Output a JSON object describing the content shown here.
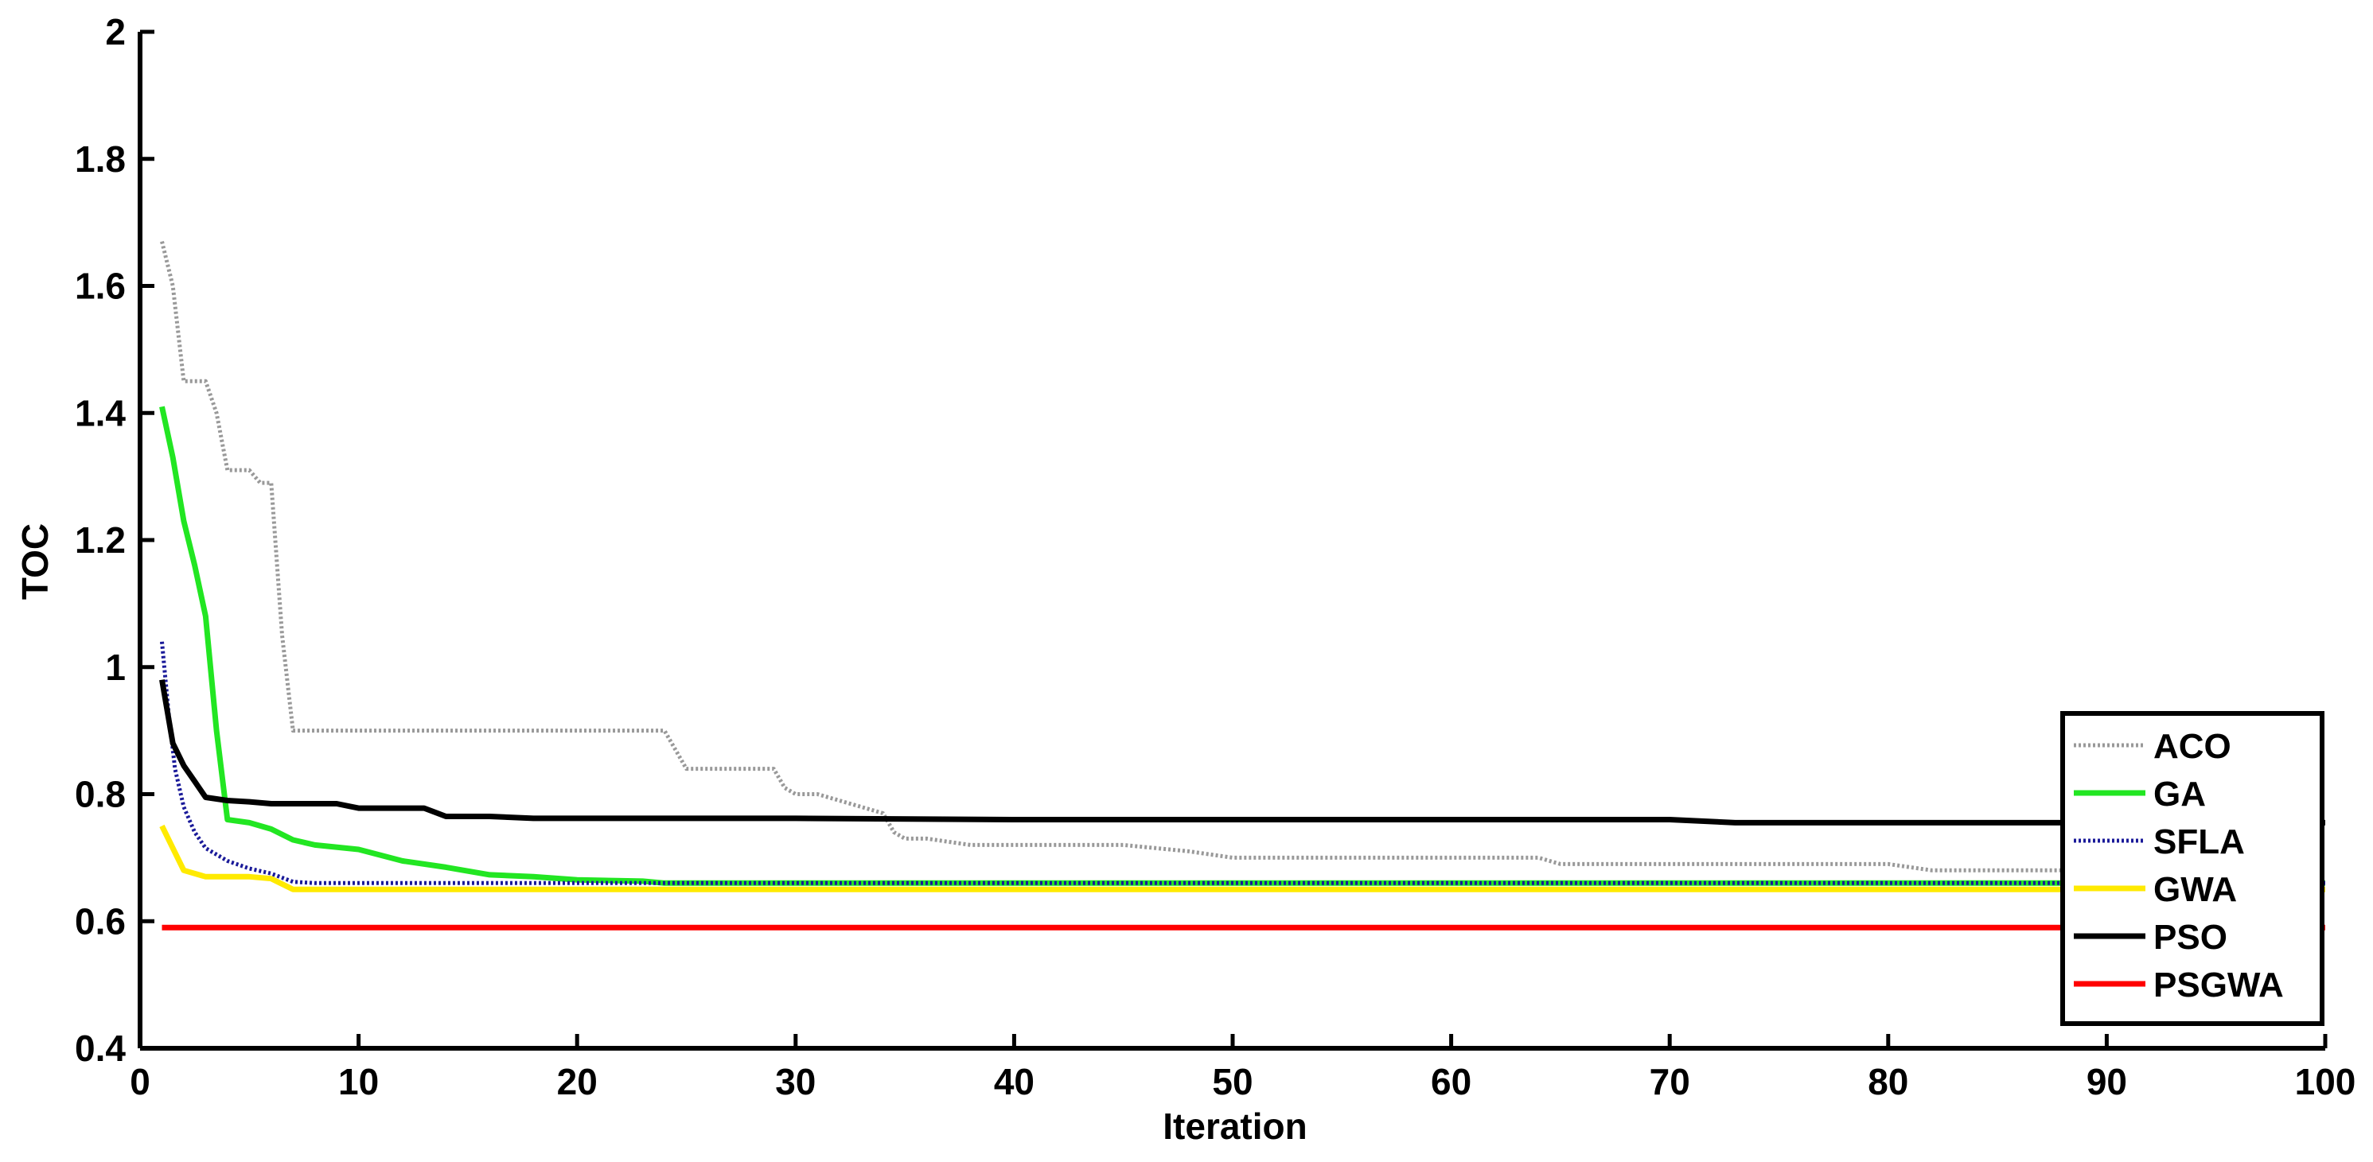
{
  "chart_data": {
    "type": "line",
    "xlabel": "Iteration",
    "ylabel": "TOC",
    "xlim": [
      0,
      100
    ],
    "ylim": [
      0.4,
      2
    ],
    "xticks": [
      "0",
      "10",
      "20",
      "30",
      "40",
      "50",
      "60",
      "70",
      "80",
      "90",
      "100"
    ],
    "yticks": [
      "0.4",
      "0.6",
      "0.8",
      "1",
      "1.2",
      "1.4",
      "1.6",
      "1.8",
      "2"
    ],
    "grid": false,
    "legend_position": "bottom-right",
    "series": [
      {
        "name": "ACO",
        "color": "#999999",
        "style": "dotted",
        "x": [
          1,
          1.5,
          2,
          3,
          3.5,
          4,
          5,
          5.5,
          6,
          6.5,
          7,
          7.3,
          10,
          15,
          20,
          24,
          24.5,
          25,
          28,
          29,
          29.5,
          30,
          31,
          32,
          33,
          34,
          34.5,
          35,
          36,
          38,
          40,
          45,
          48,
          50,
          55,
          60,
          64,
          65,
          70,
          80,
          82,
          85,
          90,
          95,
          100
        ],
        "y": [
          1.67,
          1.6,
          1.45,
          1.45,
          1.4,
          1.31,
          1.31,
          1.29,
          1.29,
          1.05,
          0.9,
          0.9,
          0.9,
          0.9,
          0.9,
          0.9,
          0.87,
          0.84,
          0.84,
          0.84,
          0.81,
          0.8,
          0.8,
          0.79,
          0.78,
          0.77,
          0.74,
          0.73,
          0.73,
          0.72,
          0.72,
          0.72,
          0.71,
          0.7,
          0.7,
          0.7,
          0.7,
          0.69,
          0.69,
          0.69,
          0.68,
          0.68,
          0.68,
          0.68,
          0.67
        ]
      },
      {
        "name": "GA",
        "color": "#22e622",
        "style": "solid",
        "x": [
          1,
          1.5,
          2,
          2.5,
          3,
          3.5,
          4,
          5,
          6,
          7,
          8,
          10,
          12,
          14,
          16,
          18,
          20,
          23,
          24,
          30,
          40,
          50,
          60,
          70,
          80,
          90,
          100
        ],
        "y": [
          1.41,
          1.33,
          1.23,
          1.16,
          1.08,
          0.9,
          0.76,
          0.755,
          0.745,
          0.728,
          0.72,
          0.713,
          0.695,
          0.685,
          0.673,
          0.67,
          0.665,
          0.663,
          0.66,
          0.66,
          0.66,
          0.66,
          0.66,
          0.66,
          0.66,
          0.66,
          0.66
        ]
      },
      {
        "name": "SFLA",
        "color": "#1a1a99",
        "style": "dotted",
        "x": [
          1,
          1.3,
          1.6,
          2,
          2.5,
          3,
          4,
          5,
          6,
          7,
          8,
          10,
          20,
          30,
          40,
          50,
          60,
          70,
          80,
          90,
          100
        ],
        "y": [
          1.04,
          0.93,
          0.84,
          0.78,
          0.74,
          0.715,
          0.695,
          0.683,
          0.675,
          0.662,
          0.66,
          0.66,
          0.66,
          0.66,
          0.66,
          0.66,
          0.66,
          0.66,
          0.66,
          0.66,
          0.66
        ]
      },
      {
        "name": "GWA",
        "color": "#ffea00",
        "style": "solid",
        "x": [
          1,
          2,
          3,
          4,
          5,
          6,
          7,
          10,
          20,
          30,
          40,
          50,
          60,
          70,
          80,
          90,
          100
        ],
        "y": [
          0.75,
          0.68,
          0.67,
          0.67,
          0.67,
          0.667,
          0.65,
          0.65,
          0.65,
          0.65,
          0.65,
          0.65,
          0.65,
          0.65,
          0.65,
          0.65,
          0.65
        ]
      },
      {
        "name": "PSO",
        "color": "#000000",
        "style": "solid",
        "x": [
          1,
          1.5,
          2,
          2.5,
          3,
          4,
          5,
          6,
          8,
          9,
          10,
          12,
          13,
          14,
          16,
          18,
          20,
          30,
          40,
          50,
          60,
          70,
          73,
          80,
          90,
          100
        ],
        "y": [
          0.98,
          0.88,
          0.845,
          0.82,
          0.795,
          0.79,
          0.788,
          0.785,
          0.785,
          0.785,
          0.778,
          0.778,
          0.778,
          0.765,
          0.765,
          0.762,
          0.762,
          0.762,
          0.76,
          0.76,
          0.76,
          0.76,
          0.755,
          0.755,
          0.755,
          0.755
        ]
      },
      {
        "name": "PSGWA",
        "color": "#ff0000",
        "style": "solid",
        "x": [
          1,
          100
        ],
        "y": [
          0.59,
          0.59
        ]
      }
    ]
  }
}
